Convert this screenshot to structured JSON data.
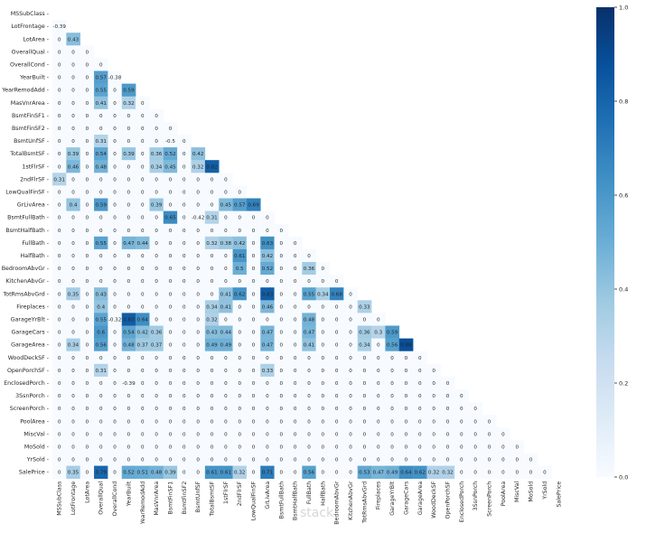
{
  "chart_data": {
    "type": "heatmap",
    "title": "",
    "xlabel": "",
    "ylabel": "",
    "mask": "upper-triangle-including-diagonal",
    "labels": [
      "MSSubClass",
      "LotFrontage",
      "LotArea",
      "OverallQual",
      "OverallCond",
      "YearBuilt",
      "YearRemodAdd",
      "MasVnrArea",
      "BsmtFinSF1",
      "BsmtFinSF2",
      "BsmtUnfSF",
      "TotalBsmtSF",
      "1stFlrSF",
      "2ndFlrSF",
      "LowQualFinSF",
      "GrLivArea",
      "BsmtFullBath",
      "BsmtHalfBath",
      "FullBath",
      "HalfBath",
      "BedroomAbvGr",
      "KitchenAbvGr",
      "TotRmsAbvGrd",
      "Fireplaces",
      "GarageYrBlt",
      "GarageCars",
      "GarageArea",
      "WoodDeckSF",
      "OpenPorchSF",
      "EnclosedPorch",
      "3SsnPorch",
      "ScreenPorch",
      "PoolArea",
      "MiscVal",
      "MoSold",
      "YrSold",
      "SalePrice"
    ],
    "nonzero": [
      [
        1,
        0,
        -0.39
      ],
      [
        2,
        1,
        0.43
      ],
      [
        5,
        3,
        0.57
      ],
      [
        5,
        4,
        -0.38
      ],
      [
        6,
        3,
        0.55
      ],
      [
        6,
        5,
        0.59
      ],
      [
        7,
        3,
        0.41
      ],
      [
        7,
        5,
        0.32
      ],
      [
        10,
        3,
        0.31
      ],
      [
        10,
        8,
        -0.5
      ],
      [
        11,
        1,
        0.39
      ],
      [
        11,
        3,
        0.54
      ],
      [
        11,
        5,
        0.39
      ],
      [
        11,
        7,
        0.36
      ],
      [
        11,
        8,
        0.52
      ],
      [
        11,
        10,
        0.42
      ],
      [
        12,
        1,
        0.46
      ],
      [
        12,
        3,
        0.48
      ],
      [
        12,
        7,
        0.34
      ],
      [
        12,
        8,
        0.45
      ],
      [
        12,
        10,
        0.32
      ],
      [
        12,
        11,
        0.82
      ],
      [
        13,
        0,
        0.31
      ],
      [
        15,
        1,
        0.4
      ],
      [
        15,
        3,
        0.59
      ],
      [
        15,
        7,
        0.39
      ],
      [
        15,
        12,
        0.45
      ],
      [
        15,
        13,
        0.57
      ],
      [
        15,
        14,
        0.69
      ],
      [
        16,
        8,
        0.65
      ],
      [
        16,
        10,
        -0.42
      ],
      [
        16,
        11,
        0.31
      ],
      [
        18,
        3,
        0.55
      ],
      [
        18,
        5,
        0.47
      ],
      [
        18,
        6,
        0.44
      ],
      [
        18,
        11,
        0.32
      ],
      [
        18,
        12,
        0.38
      ],
      [
        18,
        13,
        0.42
      ],
      [
        18,
        15,
        0.63
      ],
      [
        19,
        13,
        0.61
      ],
      [
        19,
        15,
        0.42
      ],
      [
        20,
        13,
        0.5
      ],
      [
        20,
        15,
        0.52
      ],
      [
        20,
        18,
        0.36
      ],
      [
        22,
        1,
        0.35
      ],
      [
        22,
        3,
        0.43
      ],
      [
        22,
        12,
        0.41
      ],
      [
        22,
        13,
        0.62
      ],
      [
        22,
        15,
        0.83
      ],
      [
        22,
        18,
        0.55
      ],
      [
        22,
        19,
        0.34
      ],
      [
        22,
        20,
        0.68
      ],
      [
        23,
        3,
        0.4
      ],
      [
        23,
        11,
        0.34
      ],
      [
        23,
        12,
        0.41
      ],
      [
        23,
        15,
        0.46
      ],
      [
        23,
        22,
        0.33
      ],
      [
        24,
        3,
        0.55
      ],
      [
        24,
        4,
        -0.32
      ],
      [
        24,
        5,
        0.83
      ],
      [
        24,
        6,
        0.64
      ],
      [
        24,
        11,
        0.32
      ],
      [
        24,
        18,
        0.48
      ],
      [
        25,
        3,
        0.6
      ],
      [
        25,
        5,
        0.54
      ],
      [
        25,
        6,
        0.42
      ],
      [
        25,
        7,
        0.36
      ],
      [
        25,
        11,
        0.43
      ],
      [
        25,
        12,
        0.44
      ],
      [
        25,
        15,
        0.47
      ],
      [
        25,
        18,
        0.47
      ],
      [
        25,
        22,
        0.36
      ],
      [
        25,
        23,
        0.3
      ],
      [
        25,
        24,
        0.59
      ],
      [
        26,
        1,
        0.34
      ],
      [
        26,
        3,
        0.56
      ],
      [
        26,
        5,
        0.48
      ],
      [
        26,
        6,
        0.37
      ],
      [
        26,
        7,
        0.37
      ],
      [
        26,
        11,
        0.49
      ],
      [
        26,
        12,
        0.49
      ],
      [
        26,
        15,
        0.47
      ],
      [
        26,
        18,
        0.41
      ],
      [
        26,
        22,
        0.34
      ],
      [
        26,
        24,
        0.56
      ],
      [
        26,
        25,
        0.88
      ],
      [
        28,
        3,
        0.31
      ],
      [
        28,
        15,
        0.33
      ],
      [
        29,
        5,
        -0.39
      ],
      [
        36,
        1,
        0.35
      ],
      [
        36,
        3,
        0.79
      ],
      [
        36,
        5,
        0.52
      ],
      [
        36,
        6,
        0.51
      ],
      [
        36,
        7,
        0.48
      ],
      [
        36,
        8,
        0.39
      ],
      [
        36,
        11,
        0.61
      ],
      [
        36,
        12,
        0.61
      ],
      [
        36,
        13,
        0.32
      ],
      [
        36,
        15,
        0.71
      ],
      [
        36,
        18,
        0.56
      ],
      [
        36,
        22,
        0.53
      ],
      [
        36,
        23,
        0.47
      ],
      [
        36,
        24,
        0.49
      ],
      [
        36,
        25,
        0.64
      ],
      [
        36,
        26,
        0.62
      ],
      [
        36,
        27,
        0.32
      ],
      [
        36,
        28,
        0.32
      ]
    ],
    "colorbar": {
      "colormap": "Blues",
      "range": [
        0,
        1
      ],
      "ticks": [
        "0.0",
        "0.2",
        "0.4",
        "0.6",
        "0.8",
        "1.0"
      ]
    }
  },
  "watermark": "stack"
}
